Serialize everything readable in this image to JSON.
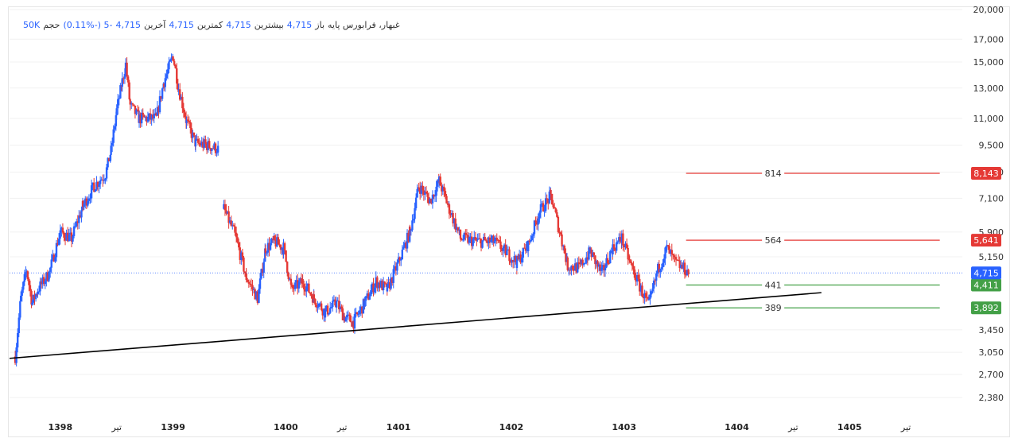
{
  "legend": {
    "symbol": "غبهار، فرابورس پایه",
    "open_label": "باز",
    "open_value": "4,715",
    "high_label": "بیشترین",
    "high_value": "4,715",
    "low_label": "کمترین",
    "low_value": "4,715",
    "close_label": "آخرین",
    "close_value": "4,715",
    "change_text": "-5 (-0.11%)",
    "volume_label": "حجم",
    "volume_value": "50K"
  },
  "colors": {
    "up": "#2962ff",
    "down": "#e53935",
    "grid": "#f1f1f1",
    "trendline": "#000000",
    "resistance": "#e53935",
    "support": "#43a047",
    "last_price": "#2962ff"
  },
  "chart_data": {
    "type": "candlestick",
    "scale": "log",
    "ylim": [
      2200,
      20000
    ],
    "y_ticks": [
      "20,000",
      "17,000",
      "15,000",
      "13,000",
      "11,000",
      "9,500",
      "8,200",
      "7,100",
      "5,900",
      "5,150",
      "3,450",
      "3,050",
      "2,700",
      "2,380"
    ],
    "x_ticks": [
      {
        "label": "1398",
        "t": 1398.0,
        "bold": true
      },
      {
        "label": "تیر",
        "t": 1398.5,
        "bold": false
      },
      {
        "label": "1399",
        "t": 1399.0,
        "bold": true
      },
      {
        "label": "1400",
        "t": 1400.0,
        "bold": true
      },
      {
        "label": "تیر",
        "t": 1400.5,
        "bold": false
      },
      {
        "label": "1401",
        "t": 1401.0,
        "bold": true
      },
      {
        "label": "1402",
        "t": 1402.0,
        "bold": true
      },
      {
        "label": "1403",
        "t": 1403.0,
        "bold": true
      },
      {
        "label": "1404",
        "t": 1404.0,
        "bold": true
      },
      {
        "label": "تیر",
        "t": 1404.5,
        "bold": false
      },
      {
        "label": "1405",
        "t": 1405.0,
        "bold": true
      },
      {
        "label": "تیر",
        "t": 1405.5,
        "bold": false
      }
    ],
    "xlim": [
      1397.55,
      1406.0
    ],
    "price_path": [
      [
        1397.6,
        2980
      ],
      [
        1397.65,
        4100
      ],
      [
        1397.7,
        4800
      ],
      [
        1397.75,
        4000
      ],
      [
        1397.8,
        4300
      ],
      [
        1397.9,
        4700
      ],
      [
        1398.0,
        5900
      ],
      [
        1398.1,
        5700
      ],
      [
        1398.2,
        6800
      ],
      [
        1398.3,
        7600
      ],
      [
        1398.4,
        8100
      ],
      [
        1398.45,
        9200
      ],
      [
        1398.5,
        11500
      ],
      [
        1398.55,
        13500
      ],
      [
        1398.58,
        14800
      ],
      [
        1398.62,
        11800
      ],
      [
        1398.7,
        11000
      ],
      [
        1398.85,
        11000
      ],
      [
        1398.92,
        13500
      ],
      [
        1399.0,
        15500
      ],
      [
        1399.05,
        13000
      ],
      [
        1399.12,
        10800
      ],
      [
        1399.2,
        9600
      ],
      [
        1399.3,
        9500
      ],
      [
        1399.4,
        9300
      ],
      [
        1399.45,
        6700
      ],
      [
        1399.55,
        5800
      ],
      [
        1399.65,
        4600
      ],
      [
        1399.75,
        4100
      ],
      [
        1399.82,
        5400
      ],
      [
        1399.9,
        5600
      ],
      [
        1399.98,
        5400
      ],
      [
        1400.05,
        4300
      ],
      [
        1400.15,
        4500
      ],
      [
        1400.25,
        4100
      ],
      [
        1400.35,
        3800
      ],
      [
        1400.45,
        4000
      ],
      [
        1400.52,
        3700
      ],
      [
        1400.6,
        3600
      ],
      [
        1400.7,
        4000
      ],
      [
        1400.8,
        4500
      ],
      [
        1400.9,
        4300
      ],
      [
        1401.0,
        5000
      ],
      [
        1401.1,
        5900
      ],
      [
        1401.18,
        7600
      ],
      [
        1401.28,
        7000
      ],
      [
        1401.36,
        7800
      ],
      [
        1401.45,
        6700
      ],
      [
        1401.55,
        5700
      ],
      [
        1401.7,
        5600
      ],
      [
        1401.85,
        5600
      ],
      [
        1401.95,
        5300
      ],
      [
        1402.05,
        5000
      ],
      [
        1402.15,
        5500
      ],
      [
        1402.25,
        6600
      ],
      [
        1402.35,
        7200
      ],
      [
        1402.45,
        5600
      ],
      [
        1402.5,
        4900
      ],
      [
        1402.6,
        4850
      ],
      [
        1402.7,
        5300
      ],
      [
        1402.8,
        4700
      ],
      [
        1402.9,
        5400
      ],
      [
        1402.98,
        5700
      ],
      [
        1403.05,
        5000
      ],
      [
        1403.15,
        4300
      ],
      [
        1403.22,
        3950
      ],
      [
        1403.3,
        4800
      ],
      [
        1403.38,
        5400
      ],
      [
        1403.45,
        5000
      ],
      [
        1403.58,
        4715
      ]
    ],
    "gap_after": [
      1399.4
    ],
    "trendline": {
      "from": {
        "t": 1397.55,
        "price": 2950
      },
      "to": {
        "t": 1404.75,
        "price": 4230
      }
    },
    "levels": [
      {
        "price": 8143,
        "label": "8,143",
        "diff": "814",
        "kind": "resistance"
      },
      {
        "price": 5641,
        "label": "5,641",
        "diff": "564",
        "kind": "resistance"
      },
      {
        "price": 4411,
        "label": "4,411",
        "diff": "441",
        "kind": "support"
      },
      {
        "price": 3892,
        "label": "3,892",
        "diff": "389",
        "kind": "support"
      }
    ],
    "last_price": {
      "price": 4715,
      "label": "4,715"
    }
  }
}
